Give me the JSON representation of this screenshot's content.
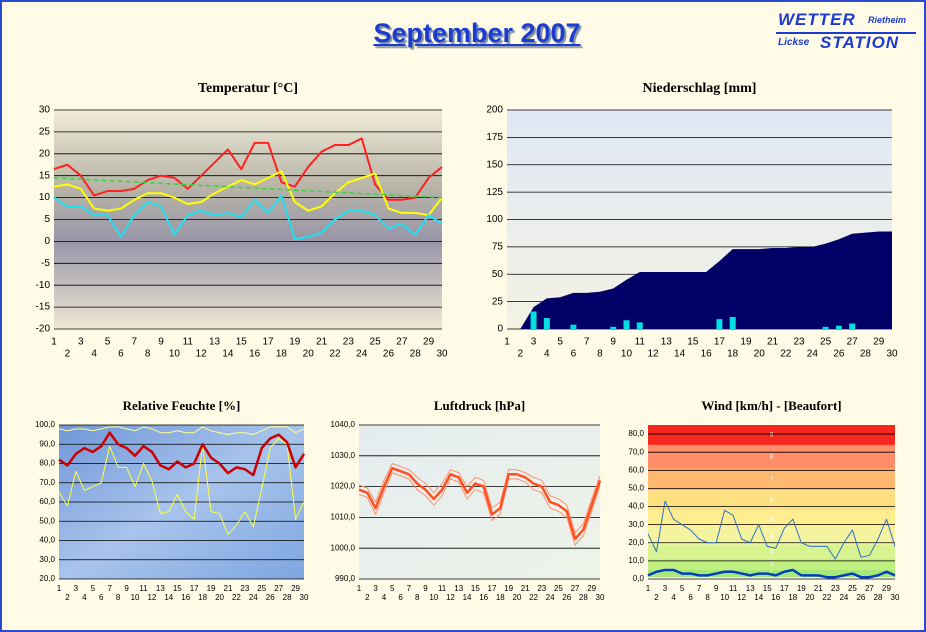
{
  "header": {
    "title": "September 2007",
    "logo": [
      "WETTER",
      "Rietheim",
      "Lickse",
      "STATION"
    ]
  },
  "chart_data": [
    {
      "type": "line",
      "title": "Temperatur [°C]",
      "x": [
        1,
        2,
        3,
        4,
        5,
        6,
        7,
        8,
        9,
        10,
        11,
        12,
        13,
        14,
        15,
        16,
        17,
        18,
        19,
        20,
        21,
        22,
        23,
        24,
        25,
        26,
        27,
        28,
        29,
        30
      ],
      "xlim": [
        1,
        30
      ],
      "ylim": [
        -20,
        30
      ],
      "yticks": [
        -20,
        -15,
        -10,
        -5,
        0,
        5,
        10,
        15,
        20,
        25,
        30
      ],
      "grid": true,
      "series": [
        {
          "color": "#ff2020",
          "values": [
            16.5,
            17.5,
            15,
            10.5,
            11.5,
            11.5,
            12,
            14,
            15,
            14.5,
            12,
            15,
            18,
            21,
            16.5,
            22.5,
            22.5,
            13.5,
            12.5,
            17,
            20.5,
            22,
            22,
            23.5,
            13,
            9.5,
            9.5,
            10,
            14.5,
            17
          ]
        },
        {
          "color": "#ffff00",
          "values": [
            12.5,
            13,
            12,
            7.5,
            7,
            7.5,
            9.5,
            11,
            11,
            10,
            8.5,
            9,
            11,
            12.5,
            14,
            13,
            14.5,
            16,
            9,
            7,
            8,
            11,
            13.5,
            14.5,
            15.5,
            7.5,
            6.5,
            6.5,
            6,
            10
          ]
        },
        {
          "color": "#20e0f0",
          "values": [
            10,
            8,
            8,
            6,
            6,
            1,
            6,
            9,
            8,
            1.5,
            6,
            7,
            6,
            6.5,
            5.5,
            9.5,
            6.5,
            10.5,
            0.5,
            1,
            2,
            5,
            7,
            7,
            6,
            3,
            4,
            1.5,
            6,
            4
          ]
        },
        {
          "color": "#40d040",
          "x": [
            1,
            30
          ],
          "values": [
            14.5,
            10
          ]
        }
      ]
    },
    {
      "type": "bar",
      "title": "Niederschlag [mm]",
      "x": [
        1,
        2,
        3,
        4,
        5,
        6,
        7,
        8,
        9,
        10,
        11,
        12,
        13,
        14,
        15,
        16,
        17,
        18,
        19,
        20,
        21,
        22,
        23,
        24,
        25,
        26,
        27,
        28,
        29,
        30
      ],
      "xlim": [
        1,
        30
      ],
      "ylim": [
        0,
        200
      ],
      "yticks": [
        0,
        25,
        50,
        75,
        100,
        125,
        150,
        175,
        200
      ],
      "grid": true,
      "series": [
        {
          "type": "area",
          "color": "#000066",
          "values": [
            null,
            0,
            20,
            28,
            29,
            33,
            33,
            34,
            37,
            45,
            52,
            52,
            52,
            52,
            52,
            52,
            62,
            73,
            73,
            73,
            74,
            74,
            75,
            75,
            78,
            82,
            87,
            88,
            89,
            89
          ]
        },
        {
          "type": "bar",
          "color": "#00e0e0",
          "values": [
            0,
            0,
            16,
            10,
            0,
            4,
            0,
            0,
            2,
            8,
            6,
            0,
            0,
            0,
            0,
            0,
            9,
            11,
            0,
            0,
            0,
            0,
            0,
            0,
            2,
            3,
            5,
            0,
            0,
            0
          ]
        }
      ]
    },
    {
      "type": "line",
      "title": "Relative Feuchte [%]",
      "x": [
        1,
        2,
        3,
        4,
        5,
        6,
        7,
        8,
        9,
        10,
        11,
        12,
        13,
        14,
        15,
        16,
        17,
        18,
        19,
        20,
        21,
        22,
        23,
        24,
        25,
        26,
        27,
        28,
        29,
        30
      ],
      "xlim": [
        1,
        30
      ],
      "ylim": [
        20,
        100
      ],
      "yticks": [
        {
          "value": 20,
          "label": "20,0"
        },
        {
          "value": 30,
          "label": "30,0"
        },
        {
          "value": 40,
          "label": "40,0"
        },
        {
          "value": 50,
          "label": "50,0"
        },
        {
          "value": 60,
          "label": "60,0"
        },
        {
          "value": 70,
          "label": "70,0"
        },
        {
          "value": 80,
          "label": "80,0"
        },
        {
          "value": 90,
          "label": "90,0"
        },
        {
          "value": 100,
          "label": "100,0"
        }
      ],
      "grid": true,
      "series": [
        {
          "color": "#ffff90",
          "values": [
            98,
            97,
            98,
            98,
            97,
            98,
            99,
            99,
            98,
            97,
            99,
            98,
            96,
            96,
            97,
            96,
            96,
            99,
            97,
            96,
            95,
            96,
            96,
            95,
            97,
            99,
            99,
            99,
            96,
            98
          ]
        },
        {
          "color": "#ffff40",
          "values": [
            65,
            58,
            76,
            66,
            68,
            70,
            89,
            78,
            78,
            68,
            80,
            71,
            54,
            55,
            64,
            55,
            51,
            90,
            55,
            54,
            43,
            48,
            55,
            47,
            67,
            88,
            93,
            90,
            51,
            60
          ]
        },
        {
          "color": "#cc0000",
          "values": [
            82,
            79,
            85,
            88,
            86,
            89,
            96,
            90,
            88,
            84,
            89,
            86,
            79,
            77,
            81,
            78,
            80,
            90,
            83,
            80,
            75,
            78,
            77,
            74,
            88,
            93,
            95,
            91,
            78,
            85
          ]
        }
      ]
    },
    {
      "type": "line",
      "title": "Luftdruck [hPa]",
      "x": [
        1,
        2,
        3,
        4,
        5,
        6,
        7,
        8,
        9,
        10,
        11,
        12,
        13,
        14,
        15,
        16,
        17,
        18,
        19,
        20,
        21,
        22,
        23,
        24,
        25,
        26,
        27,
        28,
        29,
        30
      ],
      "xlim": [
        1,
        30
      ],
      "ylim": [
        990,
        1040
      ],
      "yticks": [
        {
          "value": 990,
          "label": "990,0"
        },
        {
          "value": 1000,
          "label": "1000,0"
        },
        {
          "value": 1010,
          "label": "1010,0"
        },
        {
          "value": 1020,
          "label": "1020,0"
        },
        {
          "value": 1030,
          "label": "1030,0"
        },
        {
          "value": 1040,
          "label": "1040,0"
        }
      ],
      "grid": true,
      "series": [
        {
          "color": "#ff9070",
          "values": [
            1020.5,
            1019.5,
            1015,
            1022,
            1027.5,
            1026.5,
            1025.5,
            1023,
            1021,
            1018,
            1021,
            1025.5,
            1024.5,
            1020,
            1023,
            1022,
            1013,
            1015,
            1025.5,
            1025.5,
            1024.5,
            1023,
            1022,
            1017,
            1016,
            1014,
            1005,
            1008,
            1016,
            1023.5
          ]
        },
        {
          "color": "#ff9070",
          "values": [
            1017.5,
            1016.5,
            1011,
            1018,
            1024.5,
            1023.5,
            1022.5,
            1019,
            1017,
            1014,
            1017,
            1022.5,
            1021.5,
            1016,
            1019,
            1018,
            1009,
            1011,
            1022.5,
            1022.5,
            1021.5,
            1019,
            1018,
            1013,
            1012,
            1010,
            1001,
            1004,
            1012,
            1020.5
          ]
        },
        {
          "color": "#ff5020",
          "values": [
            1019,
            1018,
            1013,
            1020,
            1026,
            1025,
            1024,
            1021,
            1019,
            1016,
            1019,
            1024,
            1023,
            1018,
            1021,
            1020,
            1011,
            1013,
            1024,
            1024,
            1023,
            1021,
            1020,
            1015,
            1014,
            1012,
            1003,
            1006,
            1014,
            1022
          ]
        }
      ]
    },
    {
      "type": "line",
      "title": "Wind [km/h] - [Beaufort]",
      "x": [
        1,
        2,
        3,
        4,
        5,
        6,
        7,
        8,
        9,
        10,
        11,
        12,
        13,
        14,
        15,
        16,
        17,
        18,
        19,
        20,
        21,
        22,
        23,
        24,
        25,
        26,
        27,
        28,
        29,
        30
      ],
      "xlim": [
        1,
        30
      ],
      "ylim": [
        0,
        85
      ],
      "yticks": [
        {
          "value": 0,
          "label": "0,0"
        },
        {
          "value": 10,
          "label": "10,0"
        },
        {
          "value": 20,
          "label": "20,0"
        },
        {
          "value": 30,
          "label": "30,0"
        },
        {
          "value": 40,
          "label": "40,0"
        },
        {
          "value": 50,
          "label": "50,0"
        },
        {
          "value": 60,
          "label": "60,0"
        },
        {
          "value": 70,
          "label": "70,0"
        },
        {
          "value": 80,
          "label": "80,0"
        }
      ],
      "grid": true,
      "bands": [
        {
          "label": "1",
          "from": 1,
          "to": 5,
          "color": "#a8e878"
        },
        {
          "label": "2",
          "from": 5,
          "to": 11,
          "color": "#c0f080"
        },
        {
          "label": "3",
          "from": 11,
          "to": 19,
          "color": "#d8f490"
        },
        {
          "label": "4",
          "from": 19,
          "to": 28,
          "color": "#f4f4a0"
        },
        {
          "label": "5",
          "from": 28,
          "to": 38,
          "color": "#ffee90"
        },
        {
          "label": "6",
          "from": 38,
          "to": 49,
          "color": "#ffe080"
        },
        {
          "label": "7",
          "from": 49,
          "to": 61,
          "color": "#ffb870"
        },
        {
          "label": "8",
          "from": 61,
          "to": 74,
          "color": "#ff8c68"
        },
        {
          "label": "9",
          "from": 74,
          "to": 85,
          "color": "#f82820"
        }
      ],
      "series": [
        {
          "color": "#3070c8",
          "values": [
            25,
            15,
            43,
            33,
            30,
            27,
            22,
            20,
            20,
            38,
            35,
            22,
            20,
            30,
            18,
            17,
            28,
            33,
            20,
            18,
            18,
            18,
            11,
            20,
            27,
            12,
            13,
            22,
            33,
            18
          ]
        },
        {
          "color": "#0040c0",
          "values": [
            2,
            4,
            5,
            5,
            3,
            3,
            2,
            2,
            3,
            4,
            4,
            3,
            2,
            3,
            3,
            2,
            4,
            5,
            2,
            2,
            2,
            1,
            1,
            2,
            3,
            1,
            1,
            2,
            4,
            2
          ]
        }
      ]
    }
  ]
}
